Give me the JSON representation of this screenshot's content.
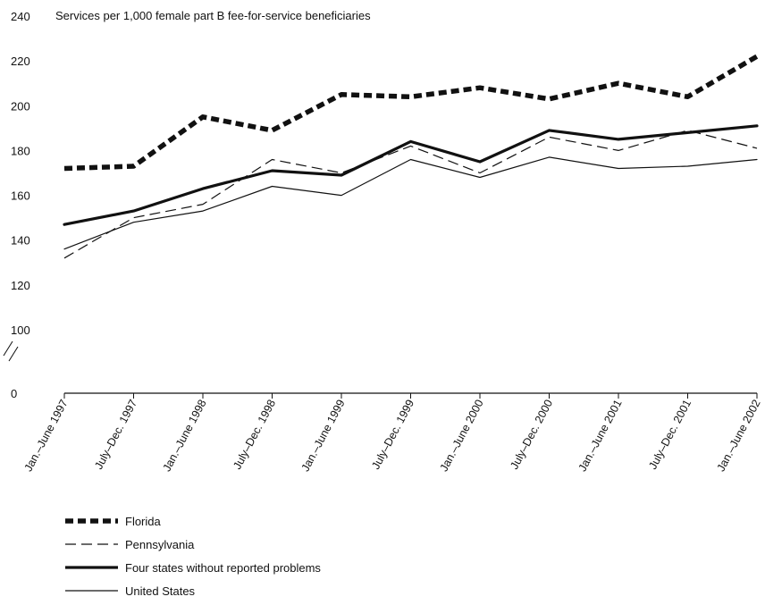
{
  "chart_data": {
    "type": "line",
    "ylabel": "Services per 1,000 female part B fee-for-service beneficiaries",
    "xlabel": "",
    "categories": [
      "Jan.–June 1997",
      "July–Dec. 1997",
      "Jan.–June 1998",
      "July–Dec. 1998",
      "Jan.–June 1999",
      "July–Dec. 1999",
      "Jan.–June 2000",
      "July–Dec. 2000",
      "Jan.–June 2001",
      "July–Dec. 2001",
      "Jan.–June 2002"
    ],
    "y_ticks": [
      0,
      100,
      120,
      140,
      160,
      180,
      200,
      220,
      240
    ],
    "ylim": [
      0,
      240
    ],
    "axis_break": "between 0 and 100",
    "grid": false,
    "legend_position": "bottom-left",
    "series": [
      {
        "name": "Florida",
        "style": "heavy-dashed",
        "color": "#111111",
        "values": [
          172,
          173,
          195,
          189,
          205,
          204,
          208,
          203,
          210,
          204,
          222
        ]
      },
      {
        "name": "Pennsylvania",
        "style": "thin-dashed",
        "color": "#111111",
        "values": [
          132,
          150,
          156,
          176,
          170,
          182,
          170,
          186,
          180,
          189,
          181
        ]
      },
      {
        "name": "Four states without reported problems",
        "style": "heavy-solid",
        "color": "#111111",
        "values": [
          147,
          153,
          163,
          171,
          169,
          184,
          175,
          189,
          185,
          188,
          191
        ]
      },
      {
        "name": "United States",
        "style": "thin-solid",
        "color": "#111111",
        "values": [
          136,
          148,
          153,
          164,
          160,
          176,
          168,
          177,
          172,
          173,
          176
        ]
      }
    ]
  }
}
